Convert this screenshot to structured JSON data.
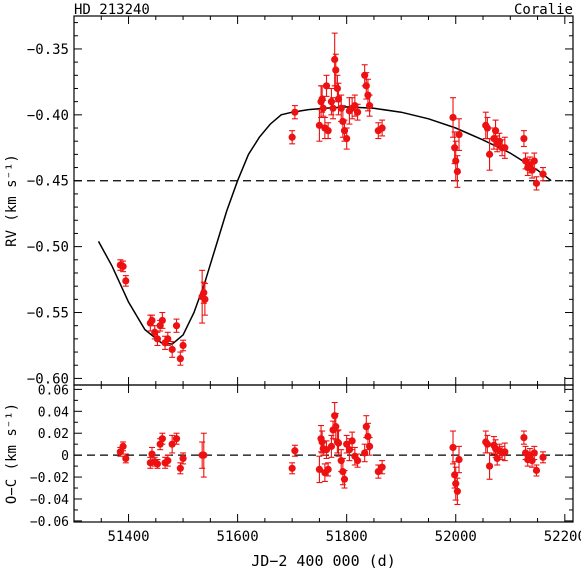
{
  "header": {
    "star": "HD 213240",
    "instrument": "Coralie"
  },
  "chart_data": [
    {
      "type": "scatter",
      "panel": "top",
      "ylabel": "RV (km s⁻¹)",
      "xlim": [
        51300,
        52215
      ],
      "ylim": [
        -0.605,
        -0.325
      ],
      "yaxis_inverted": true,
      "xticks": [
        51400,
        51600,
        51800,
        52000,
        52200
      ],
      "yticks": [
        -0.35,
        -0.4,
        -0.45,
        -0.5,
        -0.55,
        -0.6
      ],
      "ytick_labels": [
        "−0.35",
        "−0.40",
        "−0.45",
        "−0.50",
        "−0.55",
        "−0.60"
      ],
      "reference_line": -0.45,
      "model_curve": {
        "x": [
          51345,
          51370,
          51400,
          51430,
          51460,
          51480,
          51500,
          51520,
          51540,
          51560,
          51580,
          51600,
          51620,
          51640,
          51660,
          51680,
          51700,
          51730,
          51760,
          51800,
          51850,
          51900,
          51950,
          52000,
          52050,
          52100,
          52150,
          52175
        ],
        "y": [
          -0.496,
          -0.515,
          -0.542,
          -0.563,
          -0.573,
          -0.574,
          -0.567,
          -0.55,
          -0.527,
          -0.5,
          -0.473,
          -0.45,
          -0.43,
          -0.417,
          -0.407,
          -0.4,
          -0.398,
          -0.396,
          -0.395,
          -0.394,
          -0.395,
          -0.398,
          -0.403,
          -0.41,
          -0.419,
          -0.429,
          -0.442,
          -0.45
        ]
      },
      "series": [
        {
          "x": [
            51385,
            51390,
            51395,
            51440,
            51443,
            51448,
            51453,
            51458,
            51462,
            51467,
            51472,
            51480,
            51488,
            51495,
            51500,
            51535,
            51538,
            51540,
            51700,
            51705,
            51750,
            51753,
            51755,
            51757,
            51760,
            51763,
            51766,
            51772,
            51775,
            51778,
            51780,
            51783,
            51785,
            51790,
            51793,
            51796,
            51800,
            51805,
            51810,
            51815,
            51820,
            51833,
            51836,
            51839,
            51842,
            51858,
            51865,
            51995,
            51998,
            52000,
            52003,
            52006,
            52055,
            52058,
            52062,
            52070,
            52073,
            52076,
            52080,
            52085,
            52090,
            52125,
            52128,
            52132,
            52136,
            52140,
            52144,
            52148,
            52160
          ],
          "y": [
            -0.514,
            -0.515,
            -0.526,
            -0.558,
            -0.556,
            -0.565,
            -0.57,
            -0.56,
            -0.556,
            -0.573,
            -0.57,
            -0.578,
            -0.56,
            -0.585,
            -0.575,
            -0.538,
            -0.535,
            -0.54,
            -0.417,
            -0.398,
            -0.408,
            -0.39,
            -0.388,
            -0.395,
            -0.41,
            -0.378,
            -0.412,
            -0.39,
            -0.395,
            -0.358,
            -0.366,
            -0.38,
            -0.388,
            -0.395,
            -0.405,
            -0.412,
            -0.418,
            -0.397,
            -0.395,
            -0.393,
            -0.398,
            -0.37,
            -0.378,
            -0.385,
            -0.393,
            -0.412,
            -0.41,
            -0.402,
            -0.425,
            -0.435,
            -0.443,
            -0.415,
            -0.408,
            -0.41,
            -0.43,
            -0.418,
            -0.412,
            -0.422,
            -0.42,
            -0.425,
            -0.425,
            -0.418,
            -0.435,
            -0.44,
            -0.438,
            -0.442,
            -0.435,
            -0.452,
            -0.445
          ],
          "err": [
            0.004,
            0.004,
            0.004,
            0.006,
            0.004,
            0.005,
            0.005,
            0.004,
            0.006,
            0.005,
            0.005,
            0.006,
            0.005,
            0.005,
            0.004,
            0.02,
            0.008,
            0.012,
            0.005,
            0.005,
            0.012,
            0.012,
            0.01,
            0.006,
            0.008,
            0.008,
            0.006,
            0.01,
            0.008,
            0.02,
            0.012,
            0.01,
            0.012,
            0.01,
            0.012,
            0.008,
            0.008,
            0.01,
            0.008,
            0.008,
            0.006,
            0.008,
            0.01,
            0.012,
            0.008,
            0.006,
            0.006,
            0.015,
            0.012,
            0.015,
            0.012,
            0.012,
            0.01,
            0.008,
            0.012,
            0.008,
            0.008,
            0.006,
            0.006,
            0.006,
            0.008,
            0.006,
            0.006,
            0.006,
            0.006,
            0.006,
            0.006,
            0.005,
            0.005
          ]
        }
      ]
    },
    {
      "type": "scatter",
      "panel": "bottom",
      "xlabel": "JD−2 400 000 (d)",
      "ylabel": "O−C (km s⁻¹)",
      "xlim": [
        51300,
        52215
      ],
      "ylim": [
        -0.061,
        0.064
      ],
      "xticks": [
        51400,
        51600,
        51800,
        52000,
        52200
      ],
      "xtick_labels": [
        "51400",
        "51600",
        "51800",
        "52000",
        "52200"
      ],
      "yticks": [
        0.06,
        0.04,
        0.02,
        0,
        -0.02,
        -0.04,
        -0.06
      ],
      "ytick_labels": [
        "0.06",
        "0.04",
        "0.02",
        "0",
        "−0.02",
        "−0.04",
        "−0.06"
      ],
      "reference_line": 0,
      "series": [
        {
          "x": [
            51385,
            51390,
            51395,
            51440,
            51443,
            51448,
            51453,
            51458,
            51462,
            51467,
            51472,
            51480,
            51488,
            51495,
            51500,
            51535,
            51538,
            51700,
            51705,
            51750,
            51753,
            51755,
            51757,
            51760,
            51763,
            51766,
            51772,
            51775,
            51778,
            51780,
            51783,
            51785,
            51790,
            51793,
            51796,
            51800,
            51805,
            51810,
            51815,
            51820,
            51833,
            51836,
            51839,
            51842,
            51858,
            51865,
            51995,
            51998,
            52000,
            52003,
            52006,
            52055,
            52058,
            52062,
            52070,
            52073,
            52076,
            52080,
            52085,
            52090,
            52125,
            52128,
            52132,
            52136,
            52140,
            52144,
            52148,
            52160
          ],
          "y": [
            0.003,
            0.008,
            -0.003,
            -0.007,
            0.001,
            -0.006,
            -0.008,
            0.01,
            0.015,
            -0.007,
            -0.005,
            0.01,
            0.015,
            -0.012,
            -0.003,
            0.0,
            0.0,
            -0.012,
            0.004,
            -0.013,
            0.015,
            0.012,
            0.006,
            -0.016,
            0.005,
            -0.013,
            0.008,
            0.023,
            0.036,
            0.026,
            0.012,
            0.011,
            -0.005,
            -0.015,
            -0.022,
            0.01,
            0.005,
            0.013,
            -0.001,
            -0.005,
            0.002,
            0.026,
            0.017,
            0.008,
            -0.015,
            -0.011,
            0.007,
            -0.018,
            -0.026,
            -0.033,
            -0.004,
            0.012,
            0.01,
            -0.01,
            0.009,
            0.006,
            -0.003,
            0.004,
            0.002,
            0.003,
            0.016,
            0.002,
            -0.004,
            0.0,
            -0.005,
            0.002,
            -0.014,
            -0.002
          ],
          "err": [
            0.004,
            0.004,
            0.004,
            0.005,
            0.006,
            0.004,
            0.004,
            0.005,
            0.005,
            0.005,
            0.005,
            0.008,
            0.005,
            0.005,
            0.005,
            0.012,
            0.02,
            0.005,
            0.005,
            0.012,
            0.012,
            0.01,
            0.006,
            0.008,
            0.008,
            0.006,
            0.01,
            0.008,
            0.012,
            0.012,
            0.01,
            0.012,
            0.01,
            0.012,
            0.008,
            0.008,
            0.01,
            0.008,
            0.008,
            0.006,
            0.008,
            0.01,
            0.012,
            0.008,
            0.006,
            0.006,
            0.015,
            0.012,
            0.015,
            0.012,
            0.012,
            0.01,
            0.008,
            0.012,
            0.008,
            0.008,
            0.006,
            0.006,
            0.006,
            0.008,
            0.006,
            0.006,
            0.006,
            0.006,
            0.006,
            0.006,
            0.005,
            0.005
          ]
        }
      ]
    }
  ]
}
